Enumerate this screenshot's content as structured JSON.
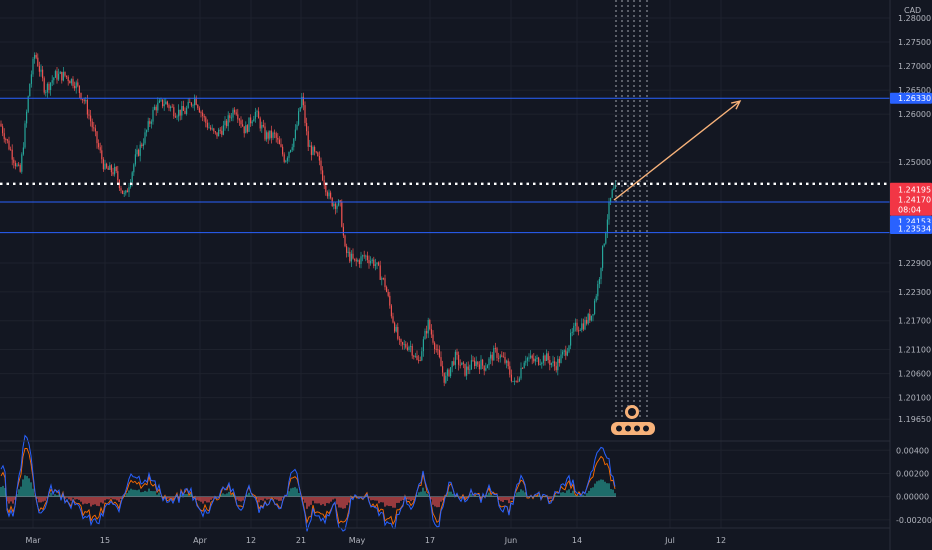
{
  "chart_data": {
    "type": "candlestick",
    "currency": "CAD",
    "price_axis": {
      "ticks": [
        "1.28000",
        "1.27500",
        "1.27000",
        "1.26500",
        "1.26000",
        "1.25000",
        "1.24195",
        "1.24170",
        "1.24153",
        "1.23534",
        "1.22900",
        "1.22300",
        "1.21700",
        "1.21100",
        "1.20600",
        "1.20100",
        "1.19650"
      ],
      "plain_ticks": [
        1.28,
        1.275,
        1.27,
        1.265,
        1.26,
        1.25,
        1.229,
        1.223,
        1.217,
        1.211,
        1.206,
        1.201,
        1.1965
      ],
      "range": [
        1.1945,
        1.2835
      ]
    },
    "time_axis": {
      "labels": [
        "Mar",
        "15",
        "Apr",
        "12",
        "21",
        "May",
        "17",
        "Jun",
        "14",
        "Jul",
        "12"
      ]
    },
    "price_path": [
      [
        0,
        1.258
      ],
      [
        20,
        1.2475
      ],
      [
        30,
        1.2668
      ],
      [
        35,
        1.2728
      ],
      [
        45,
        1.265
      ],
      [
        55,
        1.268
      ],
      [
        65,
        1.268
      ],
      [
        75,
        1.2665
      ],
      [
        85,
        1.2625
      ],
      [
        95,
        1.2555
      ],
      [
        105,
        1.2485
      ],
      [
        115,
        1.248
      ],
      [
        125,
        1.2425
      ],
      [
        135,
        1.2505
      ],
      [
        145,
        1.2555
      ],
      [
        155,
        1.2615
      ],
      [
        165,
        1.2625
      ],
      [
        175,
        1.2605
      ],
      [
        185,
        1.2605
      ],
      [
        195,
        1.2635
      ],
      [
        205,
        1.2585
      ],
      [
        215,
        1.2555
      ],
      [
        225,
        1.2575
      ],
      [
        235,
        1.2615
      ],
      [
        245,
        1.2565
      ],
      [
        255,
        1.2605
      ],
      [
        265,
        1.2555
      ],
      [
        275,
        1.2555
      ],
      [
        285,
        1.2505
      ],
      [
        295,
        1.2555
      ],
      [
        302,
        1.2635
      ],
      [
        308,
        1.2535
      ],
      [
        318,
        1.2505
      ],
      [
        325,
        1.2455
      ],
      [
        330,
        1.242
      ],
      [
        340,
        1.241
      ],
      [
        345,
        1.2315
      ],
      [
        355,
        1.229
      ],
      [
        365,
        1.2305
      ],
      [
        375,
        1.229
      ],
      [
        385,
        1.2245
      ],
      [
        392,
        1.218
      ],
      [
        400,
        1.2115
      ],
      [
        410,
        1.212
      ],
      [
        418,
        1.208
      ],
      [
        428,
        1.2165
      ],
      [
        435,
        1.212
      ],
      [
        445,
        1.2045
      ],
      [
        455,
        1.2095
      ],
      [
        465,
        1.2065
      ],
      [
        475,
        1.2085
      ],
      [
        485,
        1.2075
      ],
      [
        495,
        1.2105
      ],
      [
        505,
        1.2085
      ],
      [
        515,
        1.2035
      ],
      [
        525,
        1.2095
      ],
      [
        535,
        1.2085
      ],
      [
        545,
        1.2095
      ],
      [
        555,
        1.2075
      ],
      [
        565,
        1.2105
      ],
      [
        575,
        1.2155
      ],
      [
        585,
        1.2165
      ],
      [
        592,
        1.2185
      ],
      [
        598,
        1.2245
      ],
      [
        604,
        1.2335
      ],
      [
        608,
        1.2395
      ],
      [
        612,
        1.2435
      ],
      [
        616,
        1.2442
      ]
    ],
    "horizontal_levels": [
      {
        "price": 1.2633,
        "style": "solid",
        "color": "#2962ff",
        "label": "1.26330"
      },
      {
        "price": 1.2455,
        "style": "dotted",
        "color": "#ffffff"
      },
      {
        "price": 1.2417,
        "style": "solid",
        "color": "#2962ff"
      },
      {
        "price": 1.23534,
        "style": "solid",
        "color": "#2962ff",
        "label": "1.23534"
      }
    ],
    "current_price": {
      "price": "1.24195",
      "second_price": "1.24170",
      "countdown": "08:04",
      "color": "#f23645"
    },
    "level_label_1_24153": "1.24153",
    "projection_arrow": {
      "from": [
        614,
        1.2421
      ],
      "to": [
        740,
        1.2627
      ],
      "color": "#f7b27a"
    },
    "oscillator": {
      "ticks": [
        "0.00400",
        "0.00200",
        "0.00000",
        "-0.00200"
      ],
      "tick_values": [
        0.004,
        0.002,
        0.0,
        -0.002
      ],
      "range": [
        -0.0027,
        0.0048
      ]
    },
    "colors": {
      "up": "#26a69a",
      "down": "#ef5350",
      "background": "#131722",
      "grid": "#1e222d",
      "axis_text": "#b2b5be",
      "level": "#2962ff"
    }
  }
}
